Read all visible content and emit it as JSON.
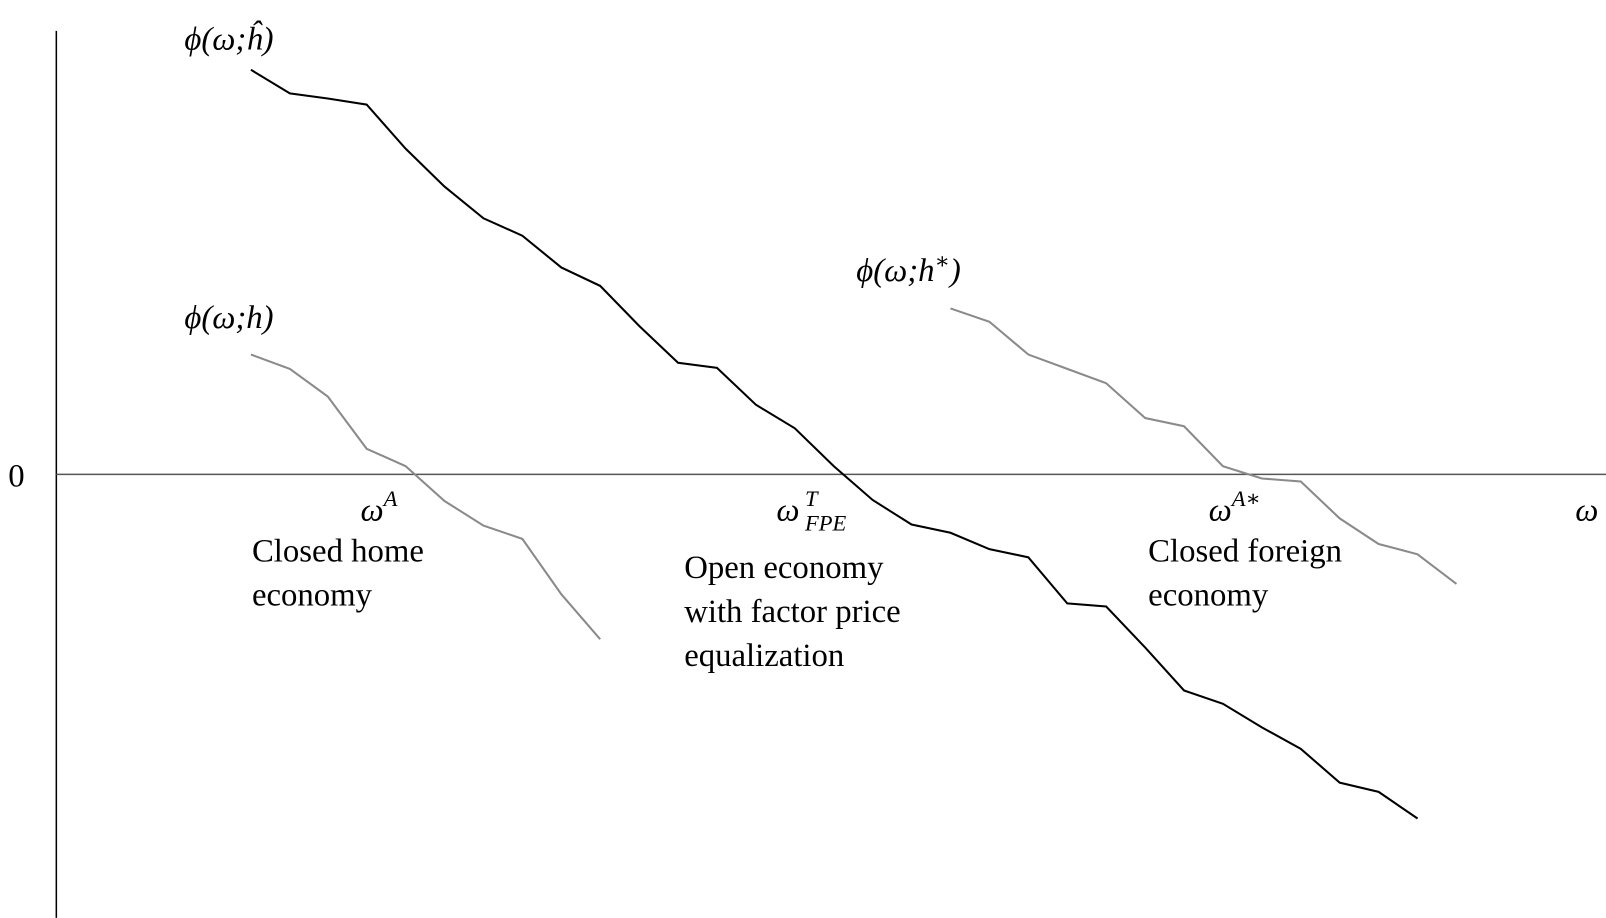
{
  "labels": {
    "phi_hhat": "ϕ(ω;ĥ)",
    "phi_h": "ϕ(ω;h)",
    "phi_hstar": {
      "base": "ϕ(ω;h",
      "sup": "∗",
      "close": ")"
    },
    "zero": "0",
    "omega_axis": "ω",
    "omega_A": {
      "base": "ω",
      "sup": "A"
    },
    "omega_FPE": {
      "base": "ω",
      "sup": "T",
      "sub": "FPE"
    },
    "omega_Astar": {
      "base": "ω",
      "sup": "A∗"
    }
  },
  "notes": {
    "closed_home": [
      "Closed home",
      "economy"
    ],
    "open_fpe": [
      "Open economy",
      "with factor price",
      "equalization"
    ],
    "closed_foreign": [
      "Closed foreign",
      "economy"
    ]
  }
}
